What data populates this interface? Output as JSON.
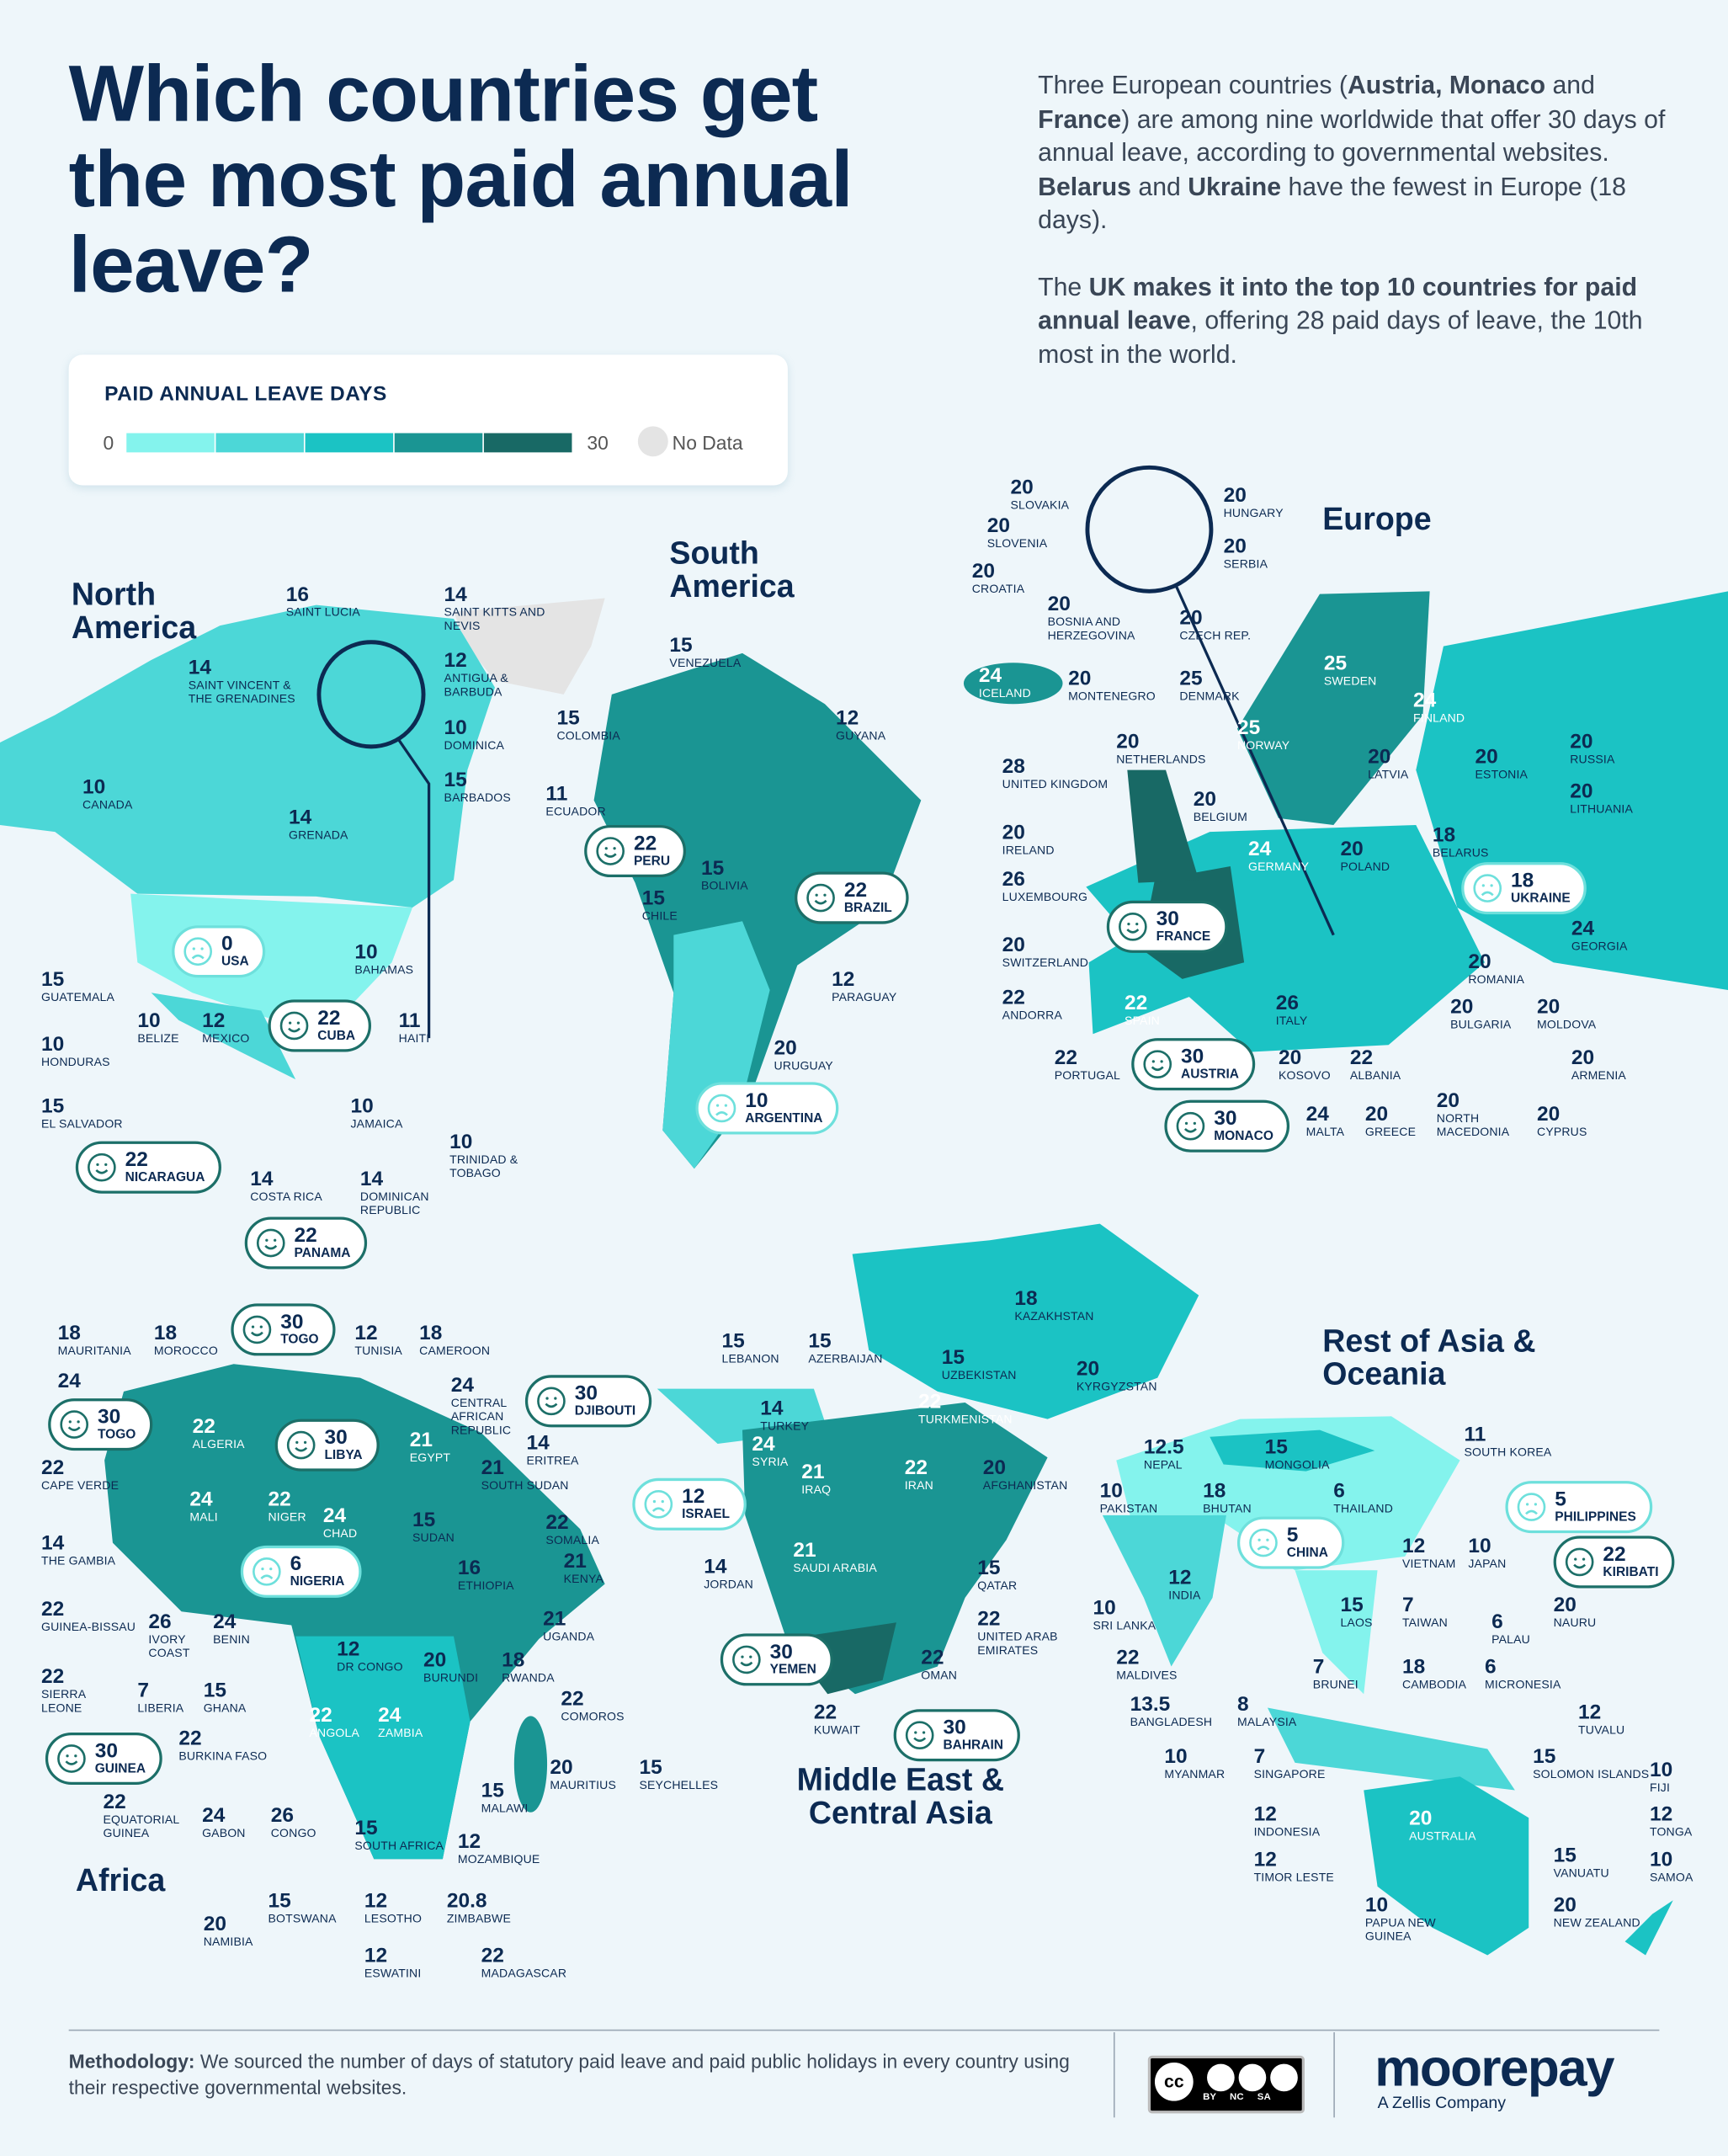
{
  "header": {
    "title": "Which countries get the most paid annual leave?",
    "intro": [
      [
        {
          "t": "Three European countries ("
        },
        {
          "t": "Austria, Monaco",
          "b": true
        },
        {
          "t": " and "
        },
        {
          "t": "France",
          "b": true
        },
        {
          "t": ") are among nine worldwide that offer 30 days of annual leave, according to governmental websites. "
        },
        {
          "t": "Belarus",
          "b": true
        },
        {
          "t": " and "
        },
        {
          "t": "Ukraine",
          "b": true
        },
        {
          "t": " have the fewest in Europe (18 days)."
        }
      ],
      [
        {
          "t": "The "
        },
        {
          "t": "UK makes it into the top 10 countries for paid annual leave",
          "b": true
        },
        {
          "t": ", offering 28 paid days of leave, the 10th most in the world."
        }
      ]
    ]
  },
  "legend": {
    "title": "PAID ANNUAL LEAVE DAYS",
    "min": "0",
    "max": "30",
    "no_data": "No Data",
    "colors": [
      "#84f3ed",
      "#4cd7d7",
      "#1bc3c4",
      "#1a9593",
      "#186965"
    ],
    "no_data_color": "#e4e4e4"
  },
  "colors": {
    "title": "#0c2a52",
    "background": "#eef6fa",
    "happy_border": "#1c6f68",
    "sad_border": "#6ee0dc"
  },
  "regions": [
    {
      "title": "North America",
      "countries": [
        {
          "name": "Saint Lucia",
          "days": "16"
        },
        {
          "name": "Saint Kitts and Nevis",
          "days": "14"
        },
        {
          "name": "Saint Vincent & the Grenadines",
          "days": "14"
        },
        {
          "name": "Antigua & Barbuda",
          "days": "12"
        },
        {
          "name": "Dominica",
          "days": "10"
        },
        {
          "name": "Barbados",
          "days": "15"
        },
        {
          "name": "Grenada",
          "days": "14"
        },
        {
          "name": "Canada",
          "days": "10"
        },
        {
          "name": "USA",
          "days": "0",
          "pill": "sad"
        },
        {
          "name": "Bahamas",
          "days": "10"
        },
        {
          "name": "Guatemala",
          "days": "15"
        },
        {
          "name": "Belize",
          "days": "10"
        },
        {
          "name": "Mexico",
          "days": "12"
        },
        {
          "name": "Cuba",
          "days": "22",
          "pill": "happy"
        },
        {
          "name": "Haiti",
          "days": "11"
        },
        {
          "name": "Honduras",
          "days": "10"
        },
        {
          "name": "El Salvador",
          "days": "15"
        },
        {
          "name": "Jamaica",
          "days": "10"
        },
        {
          "name": "Trinidad & Tobago",
          "days": "10"
        },
        {
          "name": "Nicaragua",
          "days": "22",
          "pill": "happy"
        },
        {
          "name": "Costa Rica",
          "days": "14"
        },
        {
          "name": "Dominican Republic",
          "days": "14"
        },
        {
          "name": "Panama",
          "days": "22",
          "pill": "happy"
        }
      ]
    },
    {
      "title": "South America",
      "countries": [
        {
          "name": "Venezuela",
          "days": "15"
        },
        {
          "name": "Colombia",
          "days": "15"
        },
        {
          "name": "Guyana",
          "days": "12"
        },
        {
          "name": "Ecuador",
          "days": "11"
        },
        {
          "name": "Peru",
          "days": "22",
          "pill": "happy"
        },
        {
          "name": "Bolivia",
          "days": "15"
        },
        {
          "name": "Brazil",
          "days": "22",
          "pill": "happy"
        },
        {
          "name": "Chile",
          "days": "15"
        },
        {
          "name": "Paraguay",
          "days": "12"
        },
        {
          "name": "Uruguay",
          "days": "20"
        },
        {
          "name": "Argentina",
          "days": "10",
          "pill": "sad"
        }
      ]
    },
    {
      "title": "Europe",
      "countries": [
        {
          "name": "Slovakia",
          "days": "20"
        },
        {
          "name": "Hungary",
          "days": "20"
        },
        {
          "name": "Slovenia",
          "days": "20"
        },
        {
          "name": "Serbia",
          "days": "20"
        },
        {
          "name": "Croatia",
          "days": "20"
        },
        {
          "name": "Bosnia and Herzegovina",
          "days": "20"
        },
        {
          "name": "Czech Rep.",
          "days": "20"
        },
        {
          "name": "Iceland",
          "days": "24"
        },
        {
          "name": "Montenegro",
          "days": "20"
        },
        {
          "name": "Denmark",
          "days": "25"
        },
        {
          "name": "Sweden",
          "days": "25"
        },
        {
          "name": "Finland",
          "days": "24"
        },
        {
          "name": "Norway",
          "days": "25"
        },
        {
          "name": "Russia",
          "days": "20"
        },
        {
          "name": "Netherlands",
          "days": "20"
        },
        {
          "name": "United Kingdom",
          "days": "28"
        },
        {
          "name": "Latvia",
          "days": "20"
        },
        {
          "name": "Estonia",
          "days": "20"
        },
        {
          "name": "Lithuania",
          "days": "20"
        },
        {
          "name": "Belgium",
          "days": "20"
        },
        {
          "name": "Ireland",
          "days": "20"
        },
        {
          "name": "Germany",
          "days": "24"
        },
        {
          "name": "Poland",
          "days": "20"
        },
        {
          "name": "Belarus",
          "days": "18"
        },
        {
          "name": "Luxembourg",
          "days": "26"
        },
        {
          "name": "Ukraine",
          "days": "18",
          "pill": "sad"
        },
        {
          "name": "France",
          "days": "30",
          "pill": "happy"
        },
        {
          "name": "Georgia",
          "days": "24"
        },
        {
          "name": "Switzerland",
          "days": "20"
        },
        {
          "name": "Romania",
          "days": "20"
        },
        {
          "name": "Andorra",
          "days": "22"
        },
        {
          "name": "Spain",
          "days": "22"
        },
        {
          "name": "Italy",
          "days": "26"
        },
        {
          "name": "Bulgaria",
          "days": "20"
        },
        {
          "name": "Moldova",
          "days": "20"
        },
        {
          "name": "Austria",
          "days": "30",
          "pill": "happy"
        },
        {
          "name": "Portugal",
          "days": "22"
        },
        {
          "name": "Kosovo",
          "days": "20"
        },
        {
          "name": "Albania",
          "days": "22"
        },
        {
          "name": "Armenia",
          "days": "20"
        },
        {
          "name": "Monaco",
          "days": "30",
          "pill": "happy"
        },
        {
          "name": "Malta",
          "days": "24"
        },
        {
          "name": "Greece",
          "days": "20"
        },
        {
          "name": "North Macedonia",
          "days": "20"
        },
        {
          "name": "Cyprus",
          "days": "20"
        }
      ]
    },
    {
      "title": "Africa",
      "countries": [
        {
          "name": "Togo",
          "days": "30",
          "pill": "happy"
        },
        {
          "name": "Mauritania",
          "days": "18"
        },
        {
          "name": "Morocco",
          "days": "18"
        },
        {
          "name": "Tunisia",
          "days": "12"
        },
        {
          "name": "Cameroon",
          "days": "18"
        },
        {
          "name": "",
          "days": "24"
        },
        {
          "name": "Togo",
          "days": "30",
          "pill": "happy"
        },
        {
          "name": "Central African Republic",
          "days": "24"
        },
        {
          "name": "Djibouti",
          "days": "30",
          "pill": "happy"
        },
        {
          "name": "Algeria",
          "days": "22"
        },
        {
          "name": "Libya",
          "days": "30",
          "pill": "happy"
        },
        {
          "name": "Cape Verde",
          "days": "22"
        },
        {
          "name": "Egypt",
          "days": "21"
        },
        {
          "name": "Eritrea",
          "days": "14"
        },
        {
          "name": "South Sudan",
          "days": "21"
        },
        {
          "name": "Mali",
          "days": "24"
        },
        {
          "name": "Niger",
          "days": "22"
        },
        {
          "name": "Chad",
          "days": "24"
        },
        {
          "name": "Sudan",
          "days": "15"
        },
        {
          "name": "Somalia",
          "days": "22"
        },
        {
          "name": "The Gambia",
          "days": "14"
        },
        {
          "name": "Nigeria",
          "days": "6",
          "pill": "sad"
        },
        {
          "name": "Ethiopia",
          "days": "16"
        },
        {
          "name": "Kenya",
          "days": "21"
        },
        {
          "name": "Guinea-Bissau",
          "days": "22"
        },
        {
          "name": "Ivory Coast",
          "days": "26"
        },
        {
          "name": "Benin",
          "days": "24"
        },
        {
          "name": "Uganda",
          "days": "21"
        },
        {
          "name": "DR Congo",
          "days": "12"
        },
        {
          "name": "Burundi",
          "days": "20"
        },
        {
          "name": "Rwanda",
          "days": "18"
        },
        {
          "name": "Sierra Leone",
          "days": "22"
        },
        {
          "name": "Liberia",
          "days": "7"
        },
        {
          "name": "Ghana",
          "days": "15"
        },
        {
          "name": "Comoros",
          "days": "22"
        },
        {
          "name": "Angola",
          "days": "22"
        },
        {
          "name": "Zambia",
          "days": "24"
        },
        {
          "name": "Guinea",
          "days": "30",
          "pill": "happy"
        },
        {
          "name": "Burkina Faso",
          "days": "22"
        },
        {
          "name": "Mauritius",
          "days": "20"
        },
        {
          "name": "Seychelles",
          "days": "15"
        },
        {
          "name": "Malawi",
          "days": "15"
        },
        {
          "name": "Equatorial Guinea",
          "days": "22"
        },
        {
          "name": "Gabon",
          "days": "24"
        },
        {
          "name": "Congo",
          "days": "26"
        },
        {
          "name": "South Africa",
          "days": "15"
        },
        {
          "name": "Mozambique",
          "days": "12"
        },
        {
          "name": "Namibia",
          "days": "20"
        },
        {
          "name": "Botswana",
          "days": "15"
        },
        {
          "name": "Lesotho",
          "days": "12"
        },
        {
          "name": "Zimbabwe",
          "days": "20.8"
        },
        {
          "name": "Eswatini",
          "days": "12"
        },
        {
          "name": "Madagascar",
          "days": "22"
        }
      ]
    },
    {
      "title": "Middle East & Central Asia",
      "countries": [
        {
          "name": "Kazakhstan",
          "days": "18"
        },
        {
          "name": "Lebanon",
          "days": "15"
        },
        {
          "name": "Azerbaijan",
          "days": "15"
        },
        {
          "name": "Uzbekistan",
          "days": "15"
        },
        {
          "name": "Kyrgyzstan",
          "days": "20"
        },
        {
          "name": "Turkmenistan",
          "days": "22"
        },
        {
          "name": "Turkey",
          "days": "14"
        },
        {
          "name": "Syria",
          "days": "24"
        },
        {
          "name": "Iraq",
          "days": "21"
        },
        {
          "name": "Iran",
          "days": "22"
        },
        {
          "name": "Afghanistan",
          "days": "20"
        },
        {
          "name": "Israel",
          "days": "12",
          "pill": "sad"
        },
        {
          "name": "Saudi Arabia",
          "days": "21"
        },
        {
          "name": "Jordan",
          "days": "14"
        },
        {
          "name": "Qatar",
          "days": "15"
        },
        {
          "name": "United Arab Emirates",
          "days": "22"
        },
        {
          "name": "Yemen",
          "days": "30",
          "pill": "happy"
        },
        {
          "name": "Oman",
          "days": "22"
        },
        {
          "name": "Kuwait",
          "days": "22"
        },
        {
          "name": "Bahrain",
          "days": "30",
          "pill": "happy"
        }
      ]
    },
    {
      "title": "Rest of Asia & Oceania",
      "countries": [
        {
          "name": "South Korea",
          "days": "11"
        },
        {
          "name": "Nepal",
          "days": "12.5"
        },
        {
          "name": "Mongolia",
          "days": "15"
        },
        {
          "name": "Pakistan",
          "days": "10"
        },
        {
          "name": "Bhutan",
          "days": "18"
        },
        {
          "name": "Thailand",
          "days": "6"
        },
        {
          "name": "Philippines",
          "days": "5",
          "pill": "sad"
        },
        {
          "name": "China",
          "days": "5",
          "pill": "sad"
        },
        {
          "name": "Vietnam",
          "days": "12"
        },
        {
          "name": "Japan",
          "days": "10"
        },
        {
          "name": "Kiribati",
          "days": "22",
          "pill": "happy"
        },
        {
          "name": "India",
          "days": "12"
        },
        {
          "name": "Laos",
          "days": "15"
        },
        {
          "name": "Taiwan",
          "days": "7"
        },
        {
          "name": "Sri Lanka",
          "days": "10"
        },
        {
          "name": "Nauru",
          "days": "20"
        },
        {
          "name": "Palau",
          "days": "6"
        },
        {
          "name": "Maldives",
          "days": "22"
        },
        {
          "name": "Brunei",
          "days": "7"
        },
        {
          "name": "Cambodia",
          "days": "18"
        },
        {
          "name": "Micronesia",
          "days": "6"
        },
        {
          "name": "Bangladesh",
          "days": "13.5"
        },
        {
          "name": "Malaysia",
          "days": "8"
        },
        {
          "name": "Tuvalu",
          "days": "12"
        },
        {
          "name": "Myanmar",
          "days": "10"
        },
        {
          "name": "Singapore",
          "days": "7"
        },
        {
          "name": "Solomon Islands",
          "days": "15"
        },
        {
          "name": "Fiji",
          "days": "10"
        },
        {
          "name": "Indonesia",
          "days": "12"
        },
        {
          "name": "Tonga",
          "days": "12"
        },
        {
          "name": "Australia",
          "days": "20"
        },
        {
          "name": "Timor Leste",
          "days": "12"
        },
        {
          "name": "Vanuatu",
          "days": "15"
        },
        {
          "name": "Samoa",
          "days": "10"
        },
        {
          "name": "Papua New Guinea",
          "days": "10"
        },
        {
          "name": "New Zealand",
          "days": "20"
        }
      ]
    }
  ],
  "footer": {
    "methodology_label": "Methodology:",
    "methodology_text": " We sourced the number of days of statutory paid leave and paid public holidays in every country using their respective governmental websites.",
    "license": {
      "logo": "cc",
      "tags": "BY NC SA"
    },
    "brand": "moorepay",
    "brand_sub": "A Zellis Company"
  }
}
